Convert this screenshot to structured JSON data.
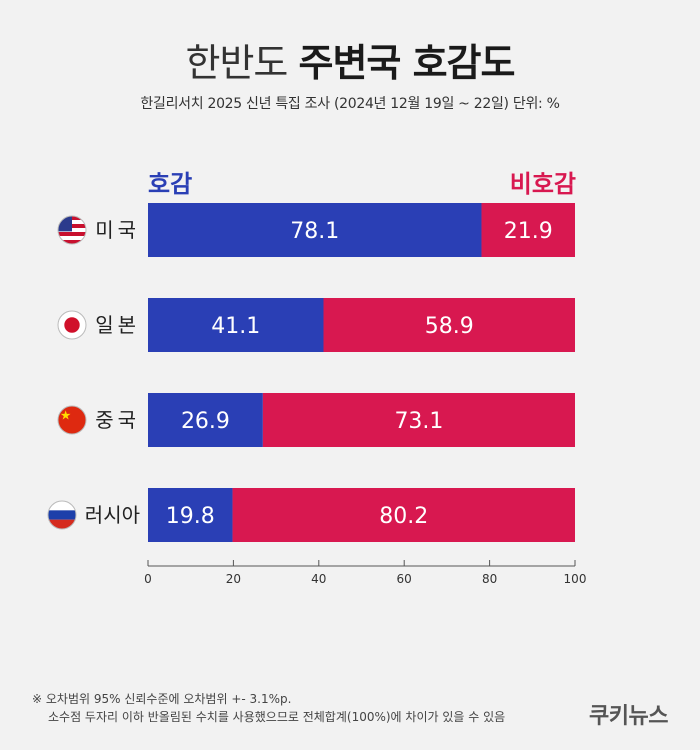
{
  "title_light": "한반도 ",
  "title_bold": "주변국 호감도",
  "subtitle": "한길리서치 2025 신년 특집 조사 (2024년 12월 19일 ~ 22일) 단위: %",
  "colors": {
    "favorable": "#2a3fb5",
    "unfavorable": "#d81850",
    "background": "#f2f2f2"
  },
  "chart_data": {
    "type": "bar",
    "orientation": "horizontal",
    "stacked": true,
    "categories": [
      "미국",
      "일본",
      "중국",
      "러시아"
    ],
    "flag_icons": [
      "usa-flag-icon",
      "japan-flag-icon",
      "china-flag-icon",
      "russia-flag-icon"
    ],
    "series": [
      {
        "name": "호감",
        "values": [
          78.1,
          41.1,
          26.9,
          19.8
        ]
      },
      {
        "name": "비호감",
        "values": [
          21.9,
          58.9,
          73.1,
          80.2
        ]
      }
    ],
    "xlim": [
      0,
      100
    ],
    "xticks": [
      "0",
      "20",
      "40",
      "60",
      "80",
      "100"
    ],
    "legend_position": "top"
  },
  "footnote": [
    "※ 오차범위 95% 신뢰수준에 오차범위 +- 3.1%p.",
    "소수점 두자리 이하 반올림된 수치를 사용했으므로 전체합계(100%)에 차이가 있을 수 있음"
  ],
  "brand": "쿠키뉴스"
}
